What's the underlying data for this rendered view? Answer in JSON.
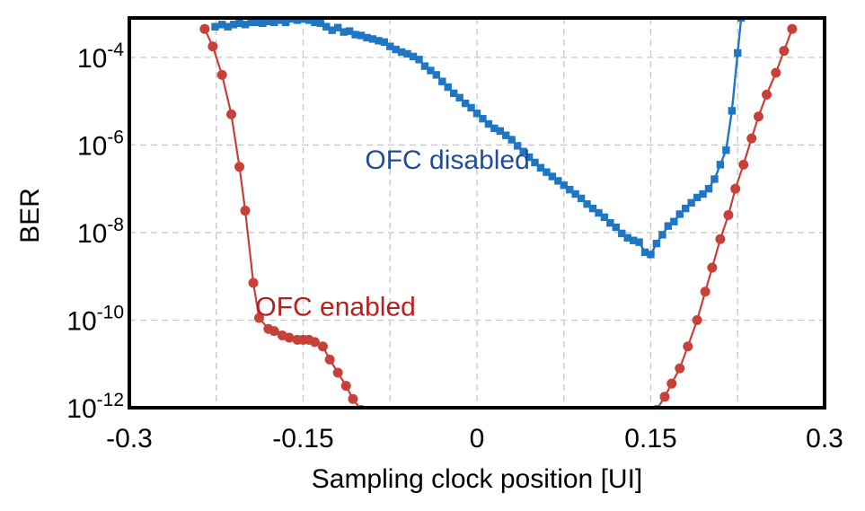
{
  "chart_data": {
    "type": "line",
    "title": "",
    "xlabel": "Sampling clock position [UI]",
    "ylabel": "BER",
    "xlim": [
      -0.3,
      0.3
    ],
    "ylim_exp": [
      -12,
      -3.1
    ],
    "y_scale": "log",
    "grid": true,
    "x_ticks": [
      {
        "value": -0.3,
        "label": "-0.3"
      },
      {
        "value": -0.15,
        "label": "-0.15"
      },
      {
        "value": 0,
        "label": "0"
      },
      {
        "value": 0.15,
        "label": "0.15"
      },
      {
        "value": 0.3,
        "label": "0.3"
      }
    ],
    "x_minor_grid": [
      -0.225,
      -0.075,
      0.075,
      0.225
    ],
    "y_ticks": [
      {
        "exp": -4,
        "base": "10",
        "sup": "-4"
      },
      {
        "exp": -6,
        "base": "10",
        "sup": "-6"
      },
      {
        "exp": -8,
        "base": "10",
        "sup": "-8"
      },
      {
        "exp": -10,
        "base": "10",
        "sup": "-10"
      },
      {
        "exp": -12,
        "base": "10",
        "sup": "-12"
      }
    ],
    "series": [
      {
        "color": "#1f77c4",
        "marker": "square",
        "x": [
          -0.226,
          -0.22,
          -0.215,
          -0.21,
          -0.205,
          -0.2,
          -0.195,
          -0.19,
          -0.185,
          -0.18,
          -0.175,
          -0.17,
          -0.165,
          -0.16,
          -0.155,
          -0.15,
          -0.145,
          -0.14,
          -0.135,
          -0.13,
          -0.125,
          -0.12,
          -0.115,
          -0.11,
          -0.105,
          -0.1,
          -0.095,
          -0.09,
          -0.085,
          -0.08,
          -0.075,
          -0.07,
          -0.065,
          -0.06,
          -0.055,
          -0.05,
          -0.045,
          -0.04,
          -0.035,
          -0.03,
          -0.025,
          -0.02,
          -0.015,
          -0.01,
          -0.005,
          0,
          0.005,
          0.01,
          0.015,
          0.02,
          0.025,
          0.03,
          0.035,
          0.04,
          0.045,
          0.05,
          0.055,
          0.06,
          0.065,
          0.07,
          0.075,
          0.08,
          0.085,
          0.09,
          0.095,
          0.1,
          0.105,
          0.11,
          0.115,
          0.12,
          0.125,
          0.13,
          0.135,
          0.14,
          0.145,
          0.15,
          0.155,
          0.16,
          0.165,
          0.17,
          0.175,
          0.18,
          0.185,
          0.19,
          0.195,
          0.2,
          0.205,
          0.21,
          0.215,
          0.22,
          0.225,
          0.228
        ],
        "y_exp": [
          -3.3,
          -3.25,
          -3.3,
          -3.25,
          -3.22,
          -3.25,
          -3.2,
          -3.2,
          -3.22,
          -3.18,
          -3.2,
          -3.15,
          -3.2,
          -3.12,
          -3.15,
          -3.12,
          -3.15,
          -3.2,
          -3.22,
          -3.3,
          -3.38,
          -3.32,
          -3.42,
          -3.4,
          -3.48,
          -3.5,
          -3.55,
          -3.58,
          -3.62,
          -3.65,
          -3.75,
          -3.82,
          -3.88,
          -3.92,
          -3.98,
          -4.05,
          -4.2,
          -4.3,
          -4.4,
          -4.55,
          -4.68,
          -4.82,
          -4.92,
          -5.05,
          -5.15,
          -5.28,
          -5.4,
          -5.52,
          -5.62,
          -5.68,
          -5.78,
          -5.88,
          -6.02,
          -6.15,
          -6.28,
          -6.4,
          -6.52,
          -6.62,
          -6.72,
          -6.82,
          -6.92,
          -7.02,
          -7.12,
          -7.22,
          -7.35,
          -7.45,
          -7.55,
          -7.65,
          -7.78,
          -7.88,
          -8.02,
          -8.12,
          -8.18,
          -8.22,
          -8.45,
          -8.5,
          -8.25,
          -8.05,
          -7.85,
          -7.75,
          -7.58,
          -7.45,
          -7.32,
          -7.2,
          -7.12,
          -7.0,
          -6.78,
          -6.45,
          -6.12,
          -5.22,
          -3.9,
          -3.1
        ]
      },
      {
        "color": "#c8403a",
        "marker": "circle",
        "x": [
          -0.235,
          -0.228,
          -0.22,
          -0.212,
          -0.205,
          -0.2,
          -0.193,
          -0.188,
          -0.18,
          -0.175,
          -0.168,
          -0.162,
          -0.155,
          -0.15,
          -0.145,
          -0.14,
          -0.133,
          -0.127,
          -0.12,
          -0.113,
          -0.107,
          -0.1,
          0.155,
          0.162,
          0.168,
          0.175,
          0.182,
          0.19,
          0.197,
          0.203,
          0.21,
          0.217,
          0.223,
          0.23,
          0.237,
          0.243,
          0.25,
          0.258,
          0.265,
          0.272
        ],
        "y_exp": [
          -3.35,
          -3.75,
          -4.4,
          -5.3,
          -6.5,
          -7.5,
          -9.15,
          -9.95,
          -10.2,
          -10.25,
          -10.35,
          -10.4,
          -10.45,
          -10.45,
          -10.45,
          -10.5,
          -10.6,
          -10.9,
          -11.2,
          -11.5,
          -11.8,
          -12.05,
          -12.05,
          -11.75,
          -11.45,
          -11.1,
          -10.6,
          -10.0,
          -9.35,
          -8.8,
          -8.15,
          -7.6,
          -7.0,
          -6.45,
          -5.85,
          -5.35,
          -4.85,
          -4.35,
          -3.85,
          -3.35
        ]
      }
    ],
    "annotations": [
      {
        "text": "OFC disabled",
        "color": "#1f4e96",
        "x": -0.0255,
        "y_exp": -6.55
      },
      {
        "text": "OFC enabled",
        "color": "#b52020",
        "x": -0.122,
        "y_exp": -9.9
      }
    ]
  }
}
